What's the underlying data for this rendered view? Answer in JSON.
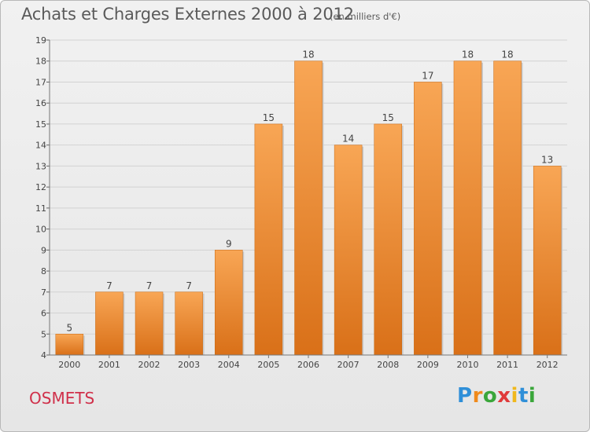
{
  "header": {
    "title": "Achats et Charges Externes 2000 à 2012",
    "subtitle": "(en milliers d'€)"
  },
  "footer": {
    "commune": "OSMETS",
    "logo_letters": [
      {
        "ch": "P",
        "color": "#2f8fd8"
      },
      {
        "ch": "r",
        "color": "#f08a1c"
      },
      {
        "ch": "o",
        "color": "#3aa63a"
      },
      {
        "ch": "x",
        "color": "#e03a3a"
      },
      {
        "ch": "i",
        "color": "#f0b81c"
      },
      {
        "ch": "t",
        "color": "#2f8fd8"
      },
      {
        "ch": "i",
        "color": "#3aa63a"
      }
    ]
  },
  "chart_data": {
    "type": "bar",
    "categories": [
      "2000",
      "2001",
      "2002",
      "2003",
      "2004",
      "2005",
      "2006",
      "2007",
      "2008",
      "2009",
      "2010",
      "2011",
      "2012"
    ],
    "values": [
      5,
      7,
      7,
      7,
      9,
      15,
      18,
      14,
      15,
      17,
      18,
      18,
      13
    ],
    "data_labels": [
      "5",
      "7",
      "7",
      "7",
      "9",
      "15",
      "18",
      "14",
      "15",
      "17",
      "18",
      "18",
      "13"
    ],
    "ylim": [
      4,
      19
    ],
    "yticks": [
      4,
      5,
      6,
      7,
      8,
      9,
      10,
      11,
      12,
      13,
      14,
      15,
      16,
      17,
      18,
      19
    ],
    "grid": true,
    "bar_color_top": "#f8a655",
    "bar_color_bottom": "#d97018"
  }
}
